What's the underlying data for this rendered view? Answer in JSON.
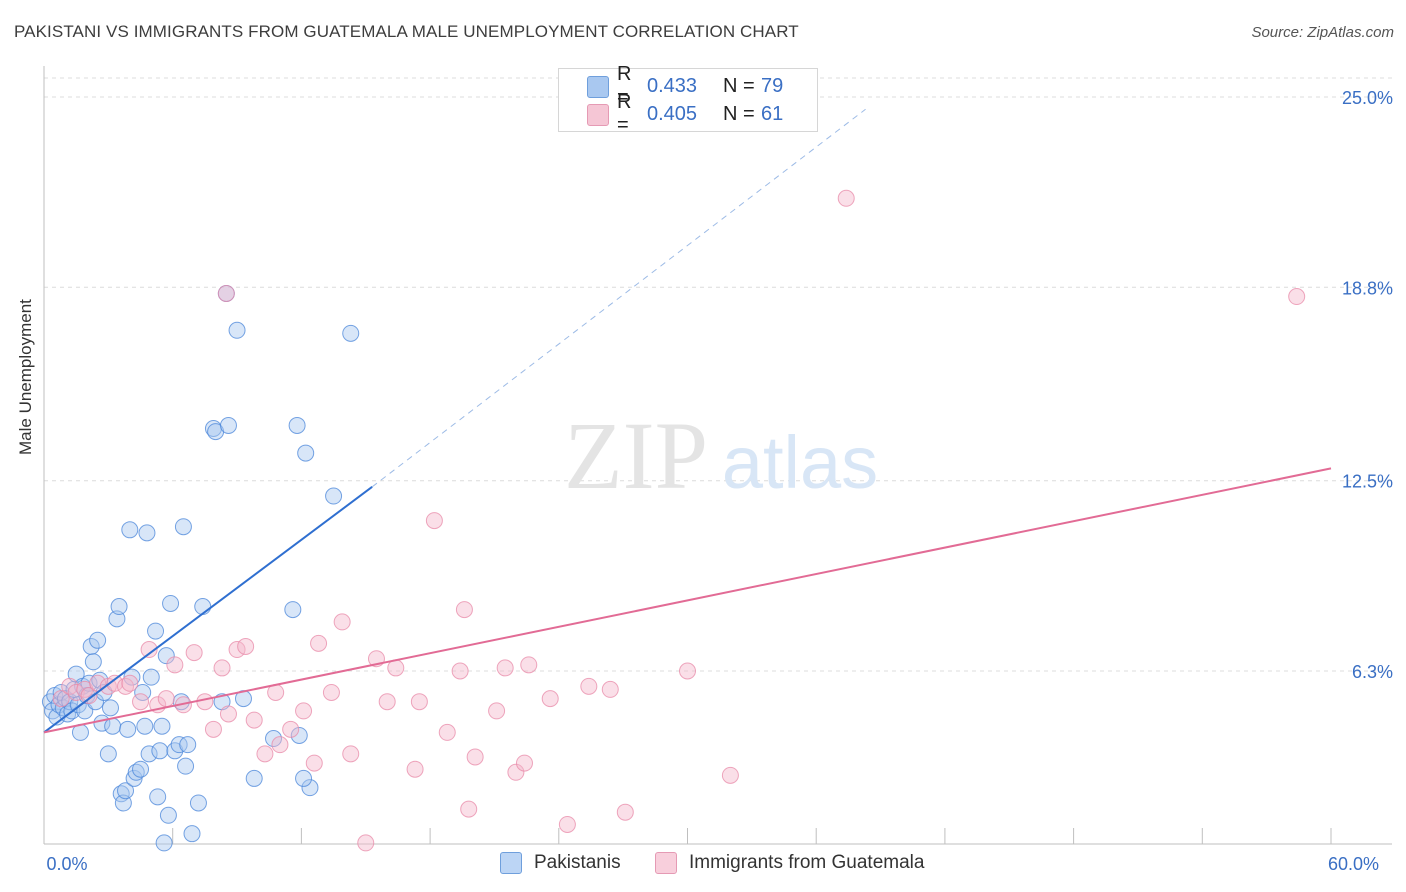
{
  "title": "PAKISTANI VS IMMIGRANTS FROM GUATEMALA MALE UNEMPLOYMENT CORRELATION CHART",
  "source": "Source: ZipAtlas.com",
  "watermark": {
    "zip": "ZIP",
    "atlas": "atlas"
  },
  "legend": {
    "rows": [
      {
        "r_label": "R = ",
        "r_value": "0.433",
        "n_label": "N = ",
        "n_value": "79",
        "color": "#a9c8f0"
      },
      {
        "r_label": "R = ",
        "r_value": "0.405",
        "n_label": "N = ",
        "n_value": "61",
        "color": "#f5b8cb"
      }
    ]
  },
  "bottom_legend": [
    {
      "label": "Pakistanis",
      "color": "#a9c8f0"
    },
    {
      "label": "Immigrants from Guatemala",
      "color": "#f5b8cb"
    }
  ],
  "chart_data": {
    "type": "scatter",
    "title": "PAKISTANI VS IMMIGRANTS FROM GUATEMALA MALE UNEMPLOYMENT CORRELATION CHART",
    "xlabel": "",
    "ylabel": "Male Unemployment",
    "xlim": [
      0,
      60
    ],
    "ylim": [
      0,
      25.8
    ],
    "x_tick_labels": [
      {
        "value": 0,
        "label": "0.0%"
      },
      {
        "value": 60,
        "label": "60.0%"
      }
    ],
    "y_tick_labels": [
      {
        "value": 6.3,
        "label": "6.3%"
      },
      {
        "value": 12.5,
        "label": "12.5%"
      },
      {
        "value": 18.8,
        "label": "18.8%"
      },
      {
        "value": 25.0,
        "label": "25.0%"
      }
    ],
    "grid": true,
    "series": [
      {
        "name": "Pakistanis",
        "color": "#4a86d9",
        "fill": "#a9c8f0",
        "trend": {
          "x0": 0.0,
          "y0": 4.3,
          "x1": 15.3,
          "y1": 12.3,
          "dash_to_x": 38.3,
          "dash_to_y": 24.6,
          "color": "#2f6fd0"
        },
        "points": [
          [
            0.3,
            5.3
          ],
          [
            0.4,
            5.0
          ],
          [
            0.5,
            5.5
          ],
          [
            0.6,
            4.8
          ],
          [
            0.7,
            5.2
          ],
          [
            0.8,
            5.6
          ],
          [
            0.9,
            5.1
          ],
          [
            1.0,
            5.4
          ],
          [
            1.1,
            4.9
          ],
          [
            1.2,
            5.3
          ],
          [
            1.3,
            5.0
          ],
          [
            1.4,
            5.7
          ],
          [
            1.5,
            6.2
          ],
          [
            1.6,
            5.2
          ],
          [
            1.7,
            4.3
          ],
          [
            1.8,
            5.8
          ],
          [
            1.9,
            5.0
          ],
          [
            2.0,
            5.5
          ],
          [
            2.1,
            5.9
          ],
          [
            2.2,
            7.1
          ],
          [
            2.3,
            6.6
          ],
          [
            2.4,
            5.3
          ],
          [
            2.5,
            7.3
          ],
          [
            2.6,
            6.0
          ],
          [
            2.7,
            4.6
          ],
          [
            2.8,
            5.6
          ],
          [
            3.0,
            3.6
          ],
          [
            3.1,
            5.1
          ],
          [
            3.2,
            4.5
          ],
          [
            3.4,
            8.0
          ],
          [
            3.5,
            8.4
          ],
          [
            3.6,
            2.3
          ],
          [
            3.7,
            2.0
          ],
          [
            3.8,
            2.4
          ],
          [
            3.9,
            4.4
          ],
          [
            4.0,
            10.9
          ],
          [
            4.1,
            6.1
          ],
          [
            4.2,
            2.8
          ],
          [
            4.3,
            3.0
          ],
          [
            4.5,
            3.1
          ],
          [
            4.6,
            5.6
          ],
          [
            4.7,
            4.5
          ],
          [
            4.8,
            10.8
          ],
          [
            4.9,
            3.6
          ],
          [
            5.0,
            6.1
          ],
          [
            5.2,
            7.6
          ],
          [
            5.3,
            2.2
          ],
          [
            5.4,
            3.7
          ],
          [
            5.5,
            4.5
          ],
          [
            5.6,
            0.7
          ],
          [
            5.7,
            6.8
          ],
          [
            5.8,
            1.6
          ],
          [
            5.9,
            8.5
          ],
          [
            6.1,
            3.7
          ],
          [
            6.3,
            3.9
          ],
          [
            6.4,
            5.3
          ],
          [
            6.5,
            11.0
          ],
          [
            6.6,
            3.2
          ],
          [
            6.7,
            3.9
          ],
          [
            6.9,
            1.0
          ],
          [
            7.2,
            2.0
          ],
          [
            7.4,
            8.4
          ],
          [
            7.9,
            14.2
          ],
          [
            8.0,
            14.1
          ],
          [
            8.3,
            5.3
          ],
          [
            8.5,
            18.6
          ],
          [
            8.6,
            14.3
          ],
          [
            9.0,
            17.4
          ],
          [
            9.3,
            5.4
          ],
          [
            9.8,
            2.8
          ],
          [
            10.7,
            4.1
          ],
          [
            11.8,
            14.3
          ],
          [
            12.2,
            13.4
          ],
          [
            12.4,
            2.5
          ],
          [
            11.6,
            8.3
          ],
          [
            13.5,
            12.0
          ],
          [
            14.3,
            17.3
          ],
          [
            12.1,
            2.8
          ],
          [
            11.9,
            4.2
          ]
        ]
      },
      {
        "name": "Immigrants from Guatemala",
        "color": "#e88aa8",
        "fill": "#f5b8cb",
        "trend": {
          "x0": 0.0,
          "y0": 4.3,
          "x1": 60.0,
          "y1": 12.9,
          "color": "#e26b95"
        },
        "points": [
          [
            0.8,
            5.4
          ],
          [
            1.2,
            5.8
          ],
          [
            1.5,
            5.6
          ],
          [
            1.9,
            5.7
          ],
          [
            2.1,
            5.5
          ],
          [
            2.5,
            5.9
          ],
          [
            3.0,
            5.8
          ],
          [
            3.3,
            5.9
          ],
          [
            3.8,
            5.8
          ],
          [
            4.0,
            5.9
          ],
          [
            4.5,
            5.3
          ],
          [
            4.9,
            7.0
          ],
          [
            5.3,
            5.2
          ],
          [
            5.7,
            5.4
          ],
          [
            6.1,
            6.5
          ],
          [
            6.5,
            5.2
          ],
          [
            7.0,
            6.9
          ],
          [
            7.5,
            5.3
          ],
          [
            7.9,
            4.4
          ],
          [
            8.3,
            6.4
          ],
          [
            8.6,
            4.9
          ],
          [
            9.0,
            7.0
          ],
          [
            9.4,
            7.1
          ],
          [
            9.8,
            4.7
          ],
          [
            10.3,
            3.6
          ],
          [
            10.8,
            5.6
          ],
          [
            11.0,
            3.9
          ],
          [
            11.5,
            4.4
          ],
          [
            12.1,
            5.0
          ],
          [
            12.6,
            3.3
          ],
          [
            12.8,
            7.2
          ],
          [
            13.4,
            5.6
          ],
          [
            13.9,
            7.9
          ],
          [
            14.3,
            3.6
          ],
          [
            15.0,
            0.7
          ],
          [
            15.5,
            6.7
          ],
          [
            16.4,
            6.4
          ],
          [
            16.0,
            5.3
          ],
          [
            17.3,
            3.1
          ],
          [
            17.5,
            5.3
          ],
          [
            18.2,
            11.2
          ],
          [
            18.8,
            4.3
          ],
          [
            19.4,
            6.3
          ],
          [
            19.6,
            8.3
          ],
          [
            19.8,
            1.8
          ],
          [
            20.1,
            3.5
          ],
          [
            21.1,
            5.0
          ],
          [
            21.5,
            6.4
          ],
          [
            22.0,
            3.0
          ],
          [
            22.4,
            3.3
          ],
          [
            22.6,
            6.5
          ],
          [
            23.6,
            5.4
          ],
          [
            24.4,
            1.3
          ],
          [
            25.4,
            5.8
          ],
          [
            26.4,
            5.7
          ],
          [
            27.1,
            1.7
          ],
          [
            30.0,
            6.3
          ],
          [
            32.0,
            2.9
          ],
          [
            37.4,
            21.7
          ],
          [
            58.4,
            18.5
          ],
          [
            8.5,
            18.6
          ]
        ]
      }
    ]
  }
}
